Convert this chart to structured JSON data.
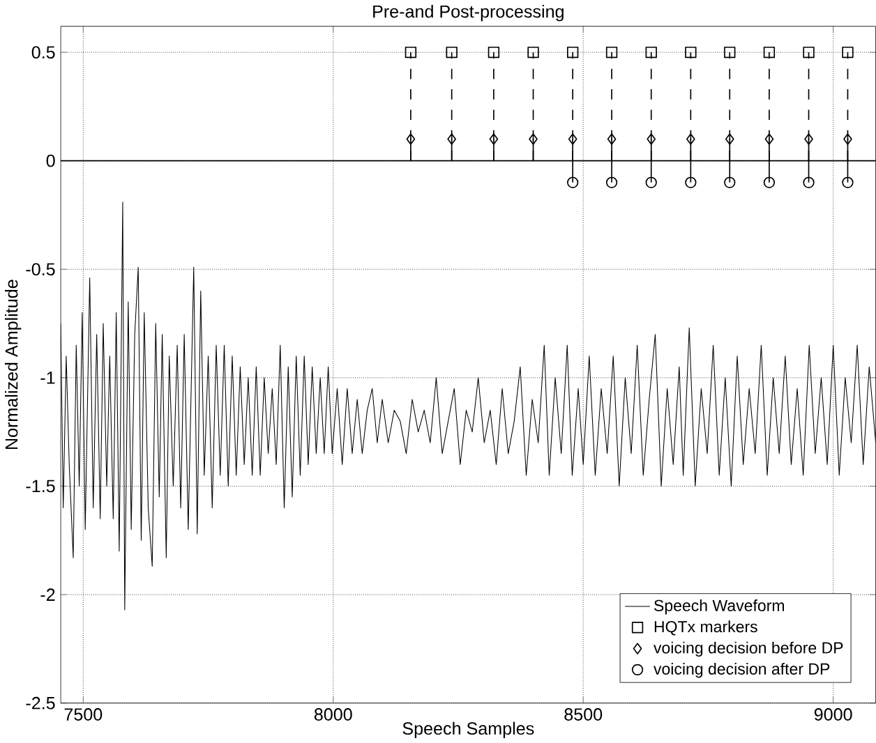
{
  "chart_data": {
    "type": "line",
    "title": "Pre-and Post-processing",
    "xlabel": "Speech Samples",
    "ylabel": "Normalized Amplitude",
    "xlim": [
      7455,
      9085
    ],
    "ylim": [
      -2.5,
      0.62
    ],
    "xticks": [
      7500,
      8000,
      8500,
      9000
    ],
    "yticks": [
      -2.5,
      -2,
      -1.5,
      -1,
      -0.5,
      0,
      0.5
    ],
    "grid": true,
    "legend": "bottom right",
    "ref_lines": [
      {
        "axis": "y",
        "value": 0,
        "color": "#000000"
      }
    ],
    "series": [
      {
        "name": "Speech Waveform",
        "color": "#000000",
        "marker": "none",
        "line_style": "solid",
        "x": [
          7455,
          7460,
          7466,
          7472,
          7480,
          7486,
          7492,
          7498,
          7504,
          7513,
          7520,
          7527,
          7534,
          7540,
          7547,
          7553,
          7560,
          7566,
          7572,
          7579,
          7583,
          7590,
          7596,
          7603,
          7610,
          7616,
          7622,
          7630,
          7638,
          7645,
          7652,
          7658,
          7666,
          7672,
          7680,
          7688,
          7695,
          7702,
          7710,
          7721,
          7728,
          7735,
          7742,
          7750,
          7758,
          7766,
          7774,
          7782,
          7790,
          7798,
          7806,
          7814,
          7822,
          7830,
          7838,
          7846,
          7854,
          7862,
          7870,
          7878,
          7886,
          7894,
          7902,
          7910,
          7918,
          7926,
          7934,
          7942,
          7950,
          7958,
          7966,
          7974,
          7982,
          7990,
          7998,
          8008,
          8018,
          8028,
          8038,
          8048,
          8058,
          8068,
          8078,
          8088,
          8098,
          8110,
          8122,
          8134,
          8146,
          8158,
          8170,
          8182,
          8194,
          8206,
          8218,
          8230,
          8242,
          8254,
          8266,
          8278,
          8290,
          8302,
          8314,
          8326,
          8338,
          8350,
          8362,
          8374,
          8386,
          8398,
          8410,
          8422,
          8432,
          8444,
          8456,
          8468,
          8478,
          8490,
          8500,
          8512,
          8524,
          8536,
          8548,
          8560,
          8572,
          8584,
          8596,
          8608,
          8620,
          8632,
          8644,
          8656,
          8668,
          8680,
          8692,
          8700,
          8712,
          8724,
          8736,
          8748,
          8760,
          8772,
          8784,
          8796,
          8808,
          8820,
          8832,
          8844,
          8856,
          8868,
          8880,
          8892,
          8904,
          8916,
          8928,
          8940,
          8952,
          8964,
          8976,
          8988,
          9000,
          9012,
          9024,
          9036,
          9048,
          9060,
          9072,
          9085
        ],
        "values": [
          -0.75,
          -1.6,
          -0.9,
          -1.4,
          -1.83,
          -0.85,
          -1.5,
          -0.7,
          -1.7,
          -0.54,
          -1.6,
          -0.8,
          -1.65,
          -0.75,
          -1.5,
          -0.9,
          -1.65,
          -0.7,
          -1.8,
          -0.19,
          -2.07,
          -0.65,
          -1.7,
          -0.8,
          -0.49,
          -1.75,
          -0.7,
          -1.6,
          -1.87,
          -0.75,
          -1.55,
          -0.8,
          -1.83,
          -0.9,
          -1.5,
          -0.85,
          -1.6,
          -0.8,
          -1.7,
          -0.49,
          -1.72,
          -0.6,
          -1.45,
          -0.9,
          -1.6,
          -0.85,
          -1.45,
          -0.85,
          -1.5,
          -0.9,
          -1.45,
          -0.95,
          -1.4,
          -1.0,
          -1.45,
          -0.95,
          -1.45,
          -1.0,
          -1.35,
          -1.05,
          -1.4,
          -0.85,
          -1.6,
          -0.95,
          -1.55,
          -0.9,
          -1.45,
          -0.9,
          -1.4,
          -0.95,
          -1.35,
          -1.0,
          -1.35,
          -0.95,
          -1.35,
          -1.05,
          -1.4,
          -1.05,
          -1.35,
          -1.1,
          -1.35,
          -1.15,
          -1.05,
          -1.3,
          -1.1,
          -1.3,
          -1.15,
          -1.2,
          -1.35,
          -1.1,
          -1.25,
          -1.15,
          -1.3,
          -1.0,
          -1.35,
          -1.2,
          -1.05,
          -1.4,
          -1.15,
          -1.25,
          -1.0,
          -1.3,
          -1.15,
          -1.4,
          -1.05,
          -1.35,
          -1.2,
          -0.95,
          -1.45,
          -1.1,
          -1.3,
          -0.85,
          -1.45,
          -1.0,
          -1.35,
          -0.85,
          -1.45,
          -1.05,
          -1.4,
          -0.9,
          -1.45,
          -1.05,
          -1.35,
          -0.9,
          -1.5,
          -1.0,
          -1.35,
          -0.85,
          -1.45,
          -1.1,
          -0.8,
          -1.5,
          -1.05,
          -1.4,
          -0.95,
          -1.45,
          -0.77,
          -1.5,
          -1.05,
          -1.35,
          -0.85,
          -1.45,
          -1.0,
          -1.5,
          -0.9,
          -1.4,
          -1.05,
          -1.35,
          -0.85,
          -1.45,
          -1.0,
          -1.35,
          -0.9,
          -1.4,
          -1.05,
          -1.45,
          -0.85,
          -1.35,
          -1.0,
          -1.4,
          -0.85,
          -1.45,
          -1.0,
          -1.3,
          -0.85,
          -1.4,
          -0.95,
          -1.3
        ]
      },
      {
        "name": "HQTx markers",
        "type": "lollipop",
        "color": "#000000",
        "marker": "square",
        "line_style": "dashed",
        "x": [
          8155,
          8237,
          8321,
          8400,
          8479,
          8557,
          8636,
          8715,
          8793,
          8872,
          8951,
          9029
        ],
        "values": [
          0.5,
          0.5,
          0.5,
          0.5,
          0.5,
          0.5,
          0.5,
          0.5,
          0.5,
          0.5,
          0.5,
          0.5
        ]
      },
      {
        "name": "voicing decision before DP",
        "type": "lollipop",
        "color": "#000000",
        "marker": "diamond",
        "line_style": "solid",
        "x": [
          8155,
          8237,
          8321,
          8400,
          8479,
          8557,
          8636,
          8715,
          8793,
          8872,
          8951,
          9029
        ],
        "values": [
          0.1,
          0.1,
          0.1,
          0.1,
          0.1,
          0.1,
          0.1,
          0.1,
          0.1,
          0.1,
          0.1,
          0.1
        ]
      },
      {
        "name": "voicing decision after DP",
        "type": "lollipop",
        "color": "#000000",
        "marker": "circle",
        "line_style": "solid",
        "x": [
          8479,
          8557,
          8636,
          8715,
          8793,
          8872,
          8951,
          9029
        ],
        "values": [
          -0.1,
          -0.1,
          -0.1,
          -0.1,
          -0.1,
          -0.1,
          -0.1,
          -0.1
        ]
      }
    ]
  }
}
